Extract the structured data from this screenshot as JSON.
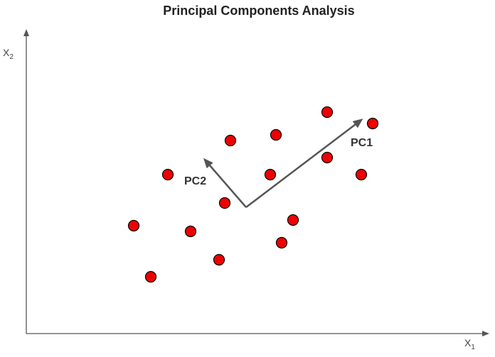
{
  "title": "Principal Components Analysis",
  "axes": {
    "x_label": "X",
    "x_sub": "1",
    "y_label": "X",
    "y_sub": "2"
  },
  "components": [
    {
      "label": "PC1"
    },
    {
      "label": "PC2"
    }
  ],
  "colors": {
    "point_fill": "#ee0000",
    "point_stroke": "#000000",
    "axis": "#555555",
    "arrow": "#555555"
  }
}
